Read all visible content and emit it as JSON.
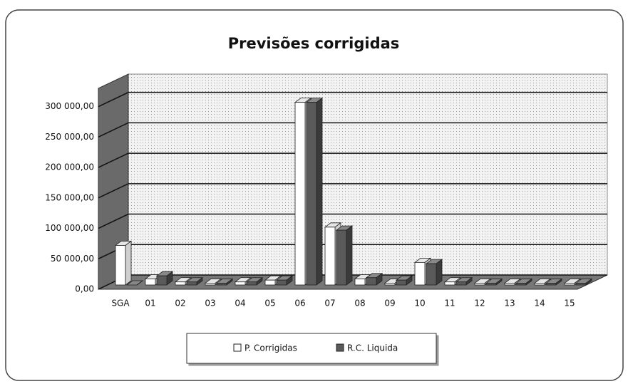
{
  "chart_data": {
    "type": "bar3d",
    "title": "Previsões corrigidas",
    "categories": [
      "SGA",
      "01",
      "02",
      "03",
      "04",
      "05",
      "06",
      "07",
      "08",
      "09",
      "10",
      "11",
      "12",
      "13",
      "14",
      "15"
    ],
    "series": [
      {
        "name": "P. Corrigidas",
        "color": "#ffffff",
        "values": [
          65000,
          10000,
          5000,
          3000,
          5000,
          8000,
          300000,
          95000,
          10000,
          3000,
          37000,
          5000,
          3000,
          3000,
          3000,
          3000
        ]
      },
      {
        "name": "R.C. Liquida",
        "color": "#5a5a5a",
        "values": [
          0,
          15000,
          5000,
          3000,
          5000,
          8000,
          300000,
          90000,
          12000,
          8000,
          35000,
          5000,
          3000,
          3000,
          3000,
          3000
        ]
      }
    ],
    "ylim": [
      0,
      330000
    ],
    "yticks": [
      {
        "value": 0,
        "label": "0,00"
      },
      {
        "value": 50000,
        "label": "50 000,00"
      },
      {
        "value": 100000,
        "label": "100 000,00"
      },
      {
        "value": 150000,
        "label": "150 000,00"
      },
      {
        "value": 200000,
        "label": "200 000,00"
      },
      {
        "value": 250000,
        "label": "250 000,00"
      },
      {
        "value": 300000,
        "label": "300 000,00"
      }
    ],
    "grid": true,
    "legend": "bottom"
  }
}
